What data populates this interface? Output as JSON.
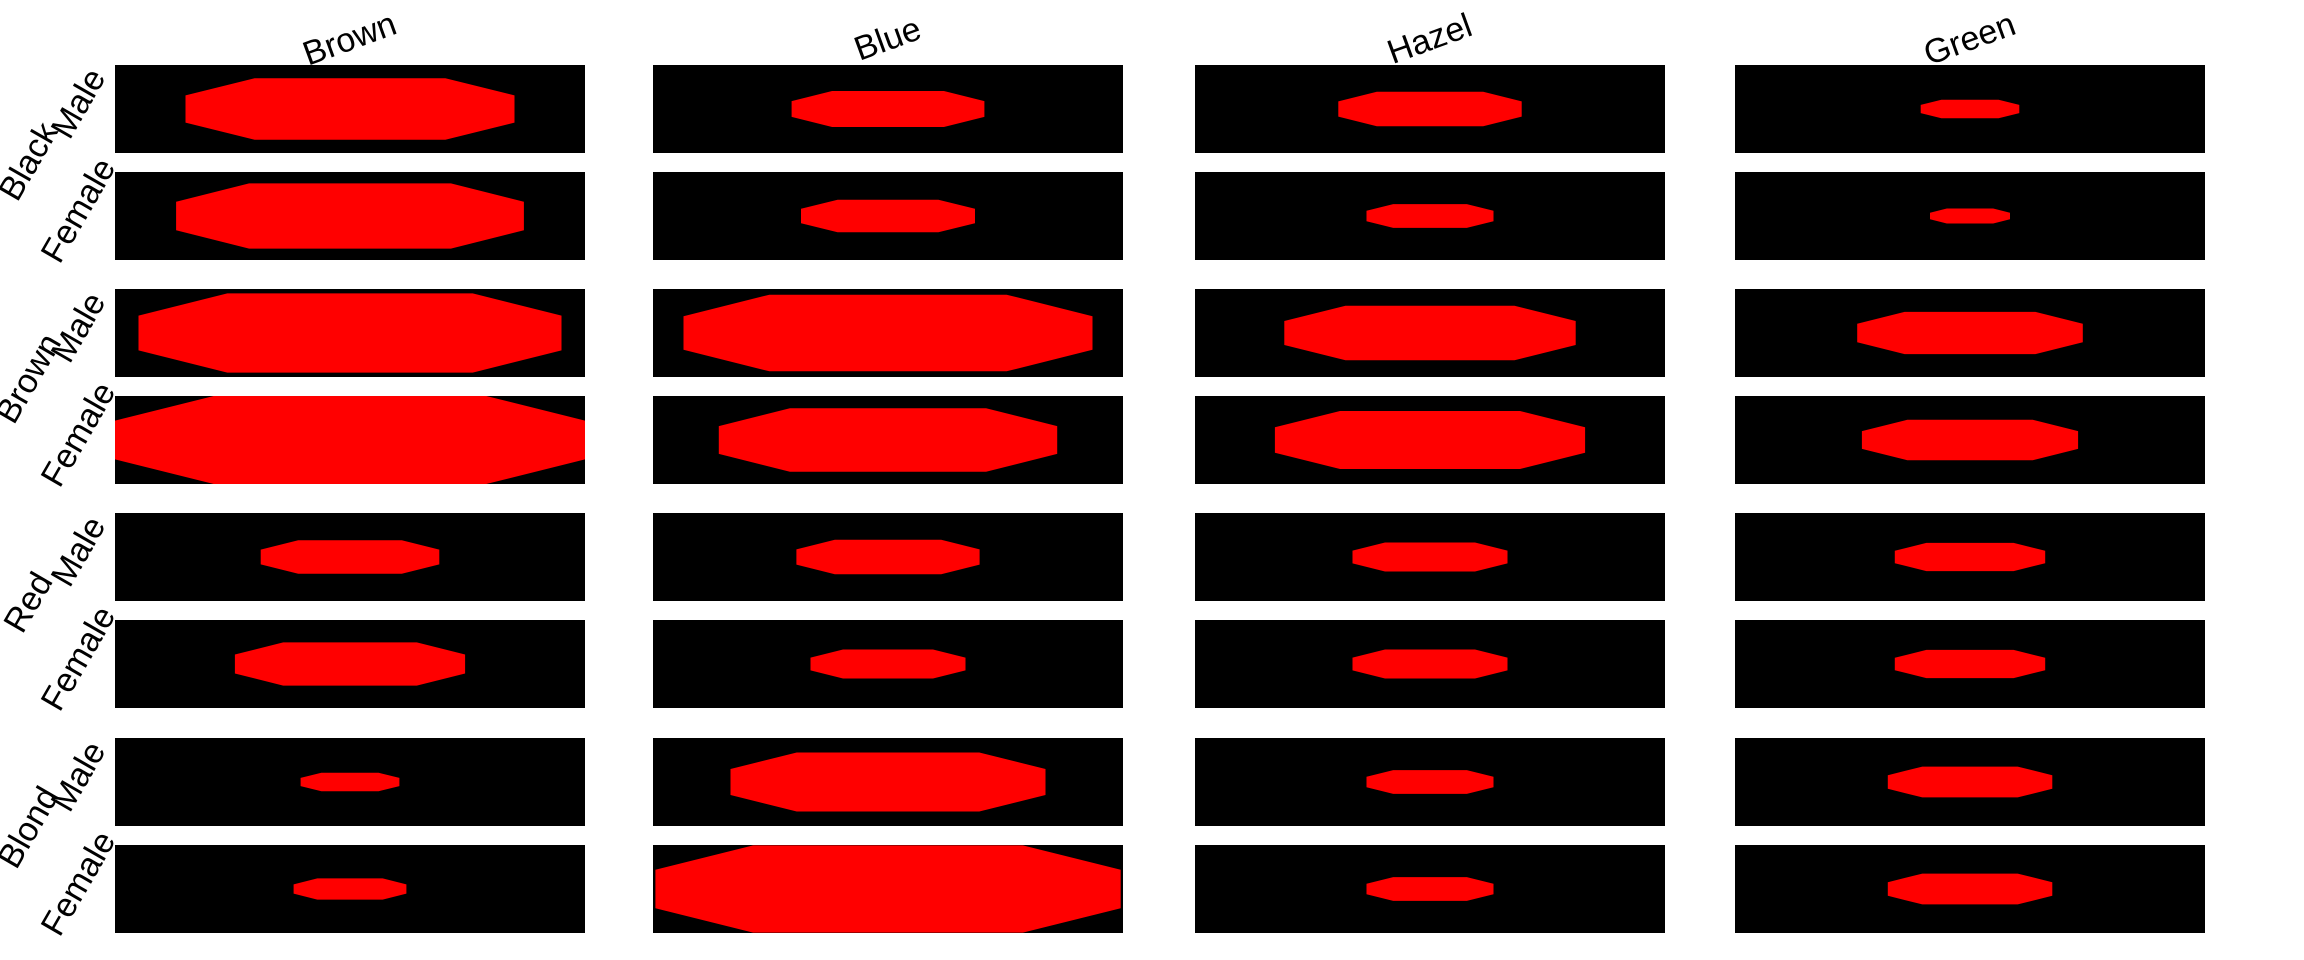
{
  "chart_data": {
    "type": "octagon-grid",
    "column_labels": [
      "Brown",
      "Blue",
      "Hazel",
      "Green"
    ],
    "hair_labels": [
      "Black",
      "Brown",
      "Red",
      "Blond"
    ],
    "sex_labels": [
      "Male",
      "Female"
    ],
    "background_color": "#000000",
    "shape_color": "#ff0000",
    "note": "",
    "values": [
      [
        0.7,
        0.41,
        0.39,
        0.21
      ],
      [
        0.74,
        0.37,
        0.27,
        0.17
      ],
      [
        0.9,
        0.87,
        0.62,
        0.48
      ],
      [
        1.0,
        0.72,
        0.66,
        0.46
      ],
      [
        0.38,
        0.39,
        0.33,
        0.32
      ],
      [
        0.49,
        0.33,
        0.33,
        0.32
      ],
      [
        0.21,
        0.67,
        0.27,
        0.35
      ],
      [
        0.24,
        0.99,
        0.27,
        0.35
      ]
    ]
  }
}
